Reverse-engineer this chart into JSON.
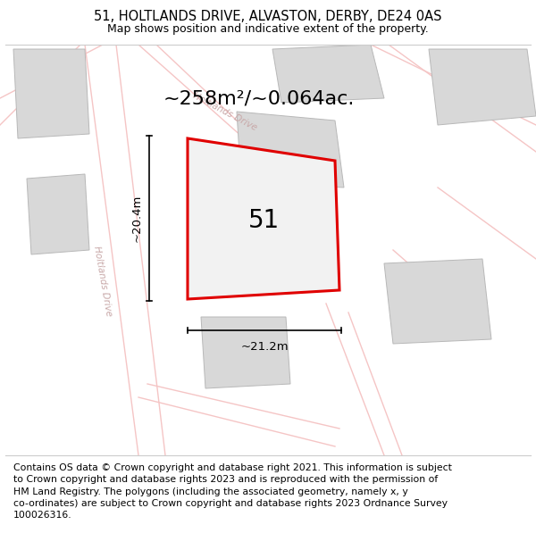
{
  "title": "51, HOLTLANDS DRIVE, ALVASTON, DERBY, DE24 0AS",
  "subtitle": "Map shows position and indicative extent of the property.",
  "footer": "Contains OS data © Crown copyright and database right 2021. This information is subject\nto Crown copyright and database rights 2023 and is reproduced with the permission of\nHM Land Registry. The polygons (including the associated geometry, namely x, y\nco-ordinates) are subject to Crown copyright and database rights 2023 Ordnance Survey\n100026316.",
  "area_text": "~258m²/~0.064ac.",
  "plot_number": "51",
  "dim_width": "~21.2m",
  "dim_height": "~20.4m",
  "bg_color": "#ffffff",
  "road_color": "#f5c5c5",
  "building_color": "#d8d8d8",
  "building_edge": "#b8b8b8",
  "road_label_color": "#c8a8a8",
  "plot_outline_color": "#e00000",
  "plot_fill_color": "#f2f2f2",
  "title_fontsize": 10.5,
  "subtitle_fontsize": 9,
  "footer_fontsize": 7.8,
  "area_fontsize": 16,
  "number_fontsize": 20,
  "dim_fontsize": 9.5,
  "road_label_fontsize": 7.5
}
